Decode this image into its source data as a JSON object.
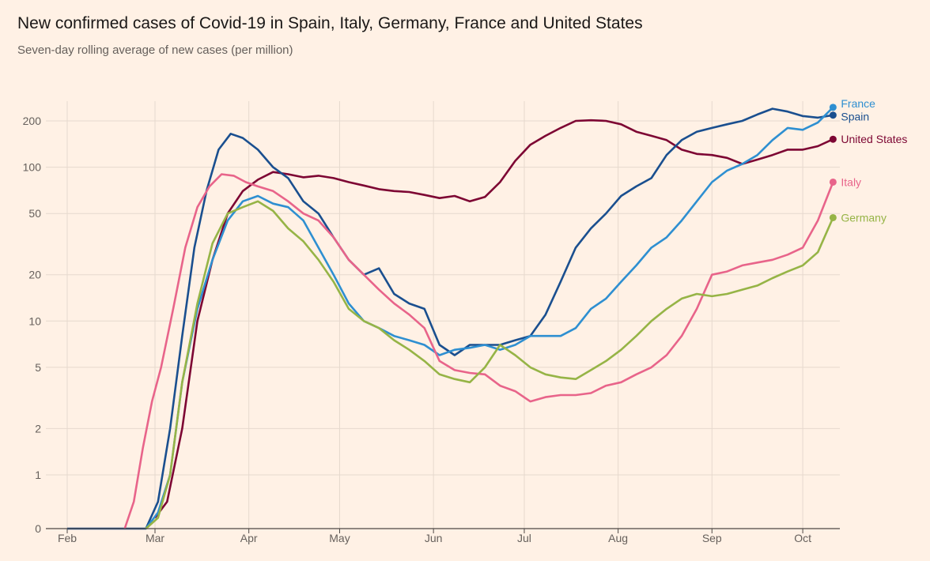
{
  "title": "New confirmed cases of Covid-19 in Spain, Italy, Germany, France and United States",
  "subtitle": "Seven-day rolling average of new cases (per million)",
  "chart_data": {
    "type": "line",
    "title": "New confirmed cases of Covid-19 in Spain, Italy, Germany, France and United States",
    "subtitle": "Seven-day rolling average of new cases (per million)",
    "xlabel": "",
    "ylabel": "",
    "y_scale": "log (with 0 baseline)",
    "y_ticks": [
      "0",
      "1",
      "2",
      "5",
      "10",
      "20",
      "50",
      "100",
      "200"
    ],
    "x_ticks": [
      "Feb",
      "Mar",
      "Apr",
      "May",
      "Jun",
      "Jul",
      "Aug",
      "Sep",
      "Oct"
    ],
    "grid": true,
    "legend": "labels at line ends (right)",
    "series": [
      {
        "name": "United States",
        "color": "#7d0633",
        "points": [
          [
            "2020-03-01",
            0.2
          ],
          [
            "2020-03-05",
            0.5
          ],
          [
            "2020-03-10",
            2
          ],
          [
            "2020-03-15",
            10
          ],
          [
            "2020-03-20",
            25
          ],
          [
            "2020-03-25",
            50
          ],
          [
            "2020-03-30",
            70
          ],
          [
            "2020-04-04",
            83
          ],
          [
            "2020-04-09",
            93
          ],
          [
            "2020-04-14",
            90
          ],
          [
            "2020-04-19",
            86
          ],
          [
            "2020-04-24",
            88
          ],
          [
            "2020-04-29",
            85
          ],
          [
            "2020-05-04",
            80
          ],
          [
            "2020-05-09",
            76
          ],
          [
            "2020-05-14",
            72
          ],
          [
            "2020-05-19",
            70
          ],
          [
            "2020-05-24",
            69
          ],
          [
            "2020-05-29",
            66
          ],
          [
            "2020-06-03",
            63
          ],
          [
            "2020-06-08",
            65
          ],
          [
            "2020-06-13",
            60
          ],
          [
            "2020-06-18",
            64
          ],
          [
            "2020-06-23",
            80
          ],
          [
            "2020-06-28",
            110
          ],
          [
            "2020-07-03",
            140
          ],
          [
            "2020-07-08",
            160
          ],
          [
            "2020-07-13",
            180
          ],
          [
            "2020-07-18",
            200
          ],
          [
            "2020-07-23",
            202
          ],
          [
            "2020-07-28",
            200
          ],
          [
            "2020-08-02",
            190
          ],
          [
            "2020-08-07",
            170
          ],
          [
            "2020-08-12",
            160
          ],
          [
            "2020-08-17",
            150
          ],
          [
            "2020-08-22",
            130
          ],
          [
            "2020-08-27",
            122
          ],
          [
            "2020-09-01",
            120
          ],
          [
            "2020-09-06",
            115
          ],
          [
            "2020-09-11",
            105
          ],
          [
            "2020-09-16",
            112
          ],
          [
            "2020-09-21",
            120
          ],
          [
            "2020-09-26",
            130
          ],
          [
            "2020-10-01",
            130
          ],
          [
            "2020-10-06",
            137
          ],
          [
            "2020-10-11",
            152
          ]
        ]
      },
      {
        "name": "Spain",
        "color": "#1a4f8f",
        "points": [
          [
            "2020-02-01",
            0
          ],
          [
            "2020-02-20",
            0
          ],
          [
            "2020-02-27",
            0
          ],
          [
            "2020-03-02",
            0.5
          ],
          [
            "2020-03-06",
            2
          ],
          [
            "2020-03-10",
            8
          ],
          [
            "2020-03-14",
            30
          ],
          [
            "2020-03-18",
            70
          ],
          [
            "2020-03-22",
            130
          ],
          [
            "2020-03-26",
            165
          ],
          [
            "2020-03-30",
            155
          ],
          [
            "2020-04-04",
            130
          ],
          [
            "2020-04-09",
            100
          ],
          [
            "2020-04-14",
            85
          ],
          [
            "2020-04-19",
            60
          ],
          [
            "2020-04-24",
            50
          ],
          [
            "2020-04-29",
            35
          ],
          [
            "2020-05-04",
            25
          ],
          [
            "2020-05-09",
            20
          ],
          [
            "2020-05-14",
            22
          ],
          [
            "2020-05-19",
            15
          ],
          [
            "2020-05-24",
            13
          ],
          [
            "2020-05-29",
            12
          ],
          [
            "2020-06-03",
            7
          ],
          [
            "2020-06-08",
            6
          ],
          [
            "2020-06-13",
            7
          ],
          [
            "2020-06-18",
            7
          ],
          [
            "2020-06-23",
            7
          ],
          [
            "2020-06-28",
            7.5
          ],
          [
            "2020-07-03",
            8
          ],
          [
            "2020-07-08",
            11
          ],
          [
            "2020-07-13",
            18
          ],
          [
            "2020-07-18",
            30
          ],
          [
            "2020-07-23",
            40
          ],
          [
            "2020-07-28",
            50
          ],
          [
            "2020-08-02",
            65
          ],
          [
            "2020-08-07",
            75
          ],
          [
            "2020-08-12",
            85
          ],
          [
            "2020-08-17",
            120
          ],
          [
            "2020-08-22",
            150
          ],
          [
            "2020-08-27",
            170
          ],
          [
            "2020-09-01",
            180
          ],
          [
            "2020-09-06",
            190
          ],
          [
            "2020-09-11",
            200
          ],
          [
            "2020-09-16",
            220
          ],
          [
            "2020-09-21",
            240
          ],
          [
            "2020-09-26",
            230
          ],
          [
            "2020-10-01",
            215
          ],
          [
            "2020-10-06",
            210
          ],
          [
            "2020-10-11",
            218
          ]
        ]
      },
      {
        "name": "France",
        "color": "#2e8fd1",
        "points": [
          [
            "2020-02-27",
            0
          ],
          [
            "2020-03-02",
            0.3
          ],
          [
            "2020-03-06",
            1
          ],
          [
            "2020-03-10",
            4
          ],
          [
            "2020-03-15",
            12
          ],
          [
            "2020-03-20",
            25
          ],
          [
            "2020-03-25",
            45
          ],
          [
            "2020-03-30",
            60
          ],
          [
            "2020-04-04",
            65
          ],
          [
            "2020-04-09",
            58
          ],
          [
            "2020-04-14",
            55
          ],
          [
            "2020-04-19",
            45
          ],
          [
            "2020-04-24",
            30
          ],
          [
            "2020-04-29",
            20
          ],
          [
            "2020-05-04",
            13
          ],
          [
            "2020-05-09",
            10
          ],
          [
            "2020-05-14",
            9
          ],
          [
            "2020-05-19",
            8
          ],
          [
            "2020-05-24",
            7.5
          ],
          [
            "2020-05-29",
            7
          ],
          [
            "2020-06-03",
            6
          ],
          [
            "2020-06-08",
            6.5
          ],
          [
            "2020-06-13",
            6.7
          ],
          [
            "2020-06-18",
            7
          ],
          [
            "2020-06-23",
            6.5
          ],
          [
            "2020-06-28",
            7
          ],
          [
            "2020-07-03",
            8
          ],
          [
            "2020-07-08",
            8
          ],
          [
            "2020-07-13",
            8
          ],
          [
            "2020-07-18",
            9
          ],
          [
            "2020-07-23",
            12
          ],
          [
            "2020-07-28",
            14
          ],
          [
            "2020-08-02",
            18
          ],
          [
            "2020-08-07",
            23
          ],
          [
            "2020-08-12",
            30
          ],
          [
            "2020-08-17",
            35
          ],
          [
            "2020-08-22",
            45
          ],
          [
            "2020-08-27",
            60
          ],
          [
            "2020-09-01",
            80
          ],
          [
            "2020-09-06",
            95
          ],
          [
            "2020-09-11",
            105
          ],
          [
            "2020-09-16",
            120
          ],
          [
            "2020-09-21",
            150
          ],
          [
            "2020-09-26",
            180
          ],
          [
            "2020-10-01",
            175
          ],
          [
            "2020-10-06",
            195
          ],
          [
            "2020-10-11",
            245
          ]
        ]
      },
      {
        "name": "Italy",
        "color": "#e8648a",
        "points": [
          [
            "2020-02-20",
            0
          ],
          [
            "2020-02-23",
            0.5
          ],
          [
            "2020-02-26",
            1.5
          ],
          [
            "2020-02-29",
            3
          ],
          [
            "2020-03-03",
            5
          ],
          [
            "2020-03-07",
            12
          ],
          [
            "2020-03-11",
            30
          ],
          [
            "2020-03-15",
            55
          ],
          [
            "2020-03-19",
            75
          ],
          [
            "2020-03-23",
            90
          ],
          [
            "2020-03-27",
            88
          ],
          [
            "2020-03-31",
            80
          ],
          [
            "2020-04-04",
            75
          ],
          [
            "2020-04-09",
            70
          ],
          [
            "2020-04-14",
            60
          ],
          [
            "2020-04-19",
            50
          ],
          [
            "2020-04-24",
            45
          ],
          [
            "2020-04-29",
            35
          ],
          [
            "2020-05-04",
            25
          ],
          [
            "2020-05-09",
            20
          ],
          [
            "2020-05-14",
            16
          ],
          [
            "2020-05-19",
            13
          ],
          [
            "2020-05-24",
            11
          ],
          [
            "2020-05-29",
            9
          ],
          [
            "2020-06-03",
            5.5
          ],
          [
            "2020-06-08",
            4.8
          ],
          [
            "2020-06-13",
            4.6
          ],
          [
            "2020-06-18",
            4.5
          ],
          [
            "2020-06-23",
            3.8
          ],
          [
            "2020-06-28",
            3.5
          ],
          [
            "2020-07-03",
            3
          ],
          [
            "2020-07-08",
            3.2
          ],
          [
            "2020-07-13",
            3.3
          ],
          [
            "2020-07-18",
            3.3
          ],
          [
            "2020-07-23",
            3.4
          ],
          [
            "2020-07-28",
            3.8
          ],
          [
            "2020-08-02",
            4
          ],
          [
            "2020-08-07",
            4.5
          ],
          [
            "2020-08-12",
            5
          ],
          [
            "2020-08-17",
            6
          ],
          [
            "2020-08-22",
            8
          ],
          [
            "2020-08-27",
            12
          ],
          [
            "2020-09-01",
            20
          ],
          [
            "2020-09-06",
            21
          ],
          [
            "2020-09-11",
            23
          ],
          [
            "2020-09-16",
            24
          ],
          [
            "2020-09-21",
            25
          ],
          [
            "2020-09-26",
            27
          ],
          [
            "2020-10-01",
            30
          ],
          [
            "2020-10-06",
            45
          ],
          [
            "2020-10-11",
            80
          ]
        ]
      },
      {
        "name": "Germany",
        "color": "#96b446",
        "points": [
          [
            "2020-02-27",
            0
          ],
          [
            "2020-03-02",
            0.2
          ],
          [
            "2020-03-06",
            1
          ],
          [
            "2020-03-10",
            4
          ],
          [
            "2020-03-15",
            13
          ],
          [
            "2020-03-20",
            32
          ],
          [
            "2020-03-25",
            50
          ],
          [
            "2020-03-30",
            55
          ],
          [
            "2020-04-04",
            60
          ],
          [
            "2020-04-09",
            52
          ],
          [
            "2020-04-14",
            40
          ],
          [
            "2020-04-19",
            33
          ],
          [
            "2020-04-24",
            25
          ],
          [
            "2020-04-29",
            18
          ],
          [
            "2020-05-04",
            12
          ],
          [
            "2020-05-09",
            10
          ],
          [
            "2020-05-14",
            9
          ],
          [
            "2020-05-19",
            7.5
          ],
          [
            "2020-05-24",
            6.5
          ],
          [
            "2020-05-29",
            5.5
          ],
          [
            "2020-06-03",
            4.5
          ],
          [
            "2020-06-08",
            4.2
          ],
          [
            "2020-06-13",
            4
          ],
          [
            "2020-06-18",
            5
          ],
          [
            "2020-06-23",
            7
          ],
          [
            "2020-06-28",
            6
          ],
          [
            "2020-07-03",
            5
          ],
          [
            "2020-07-08",
            4.5
          ],
          [
            "2020-07-13",
            4.3
          ],
          [
            "2020-07-18",
            4.2
          ],
          [
            "2020-07-23",
            4.8
          ],
          [
            "2020-07-28",
            5.5
          ],
          [
            "2020-08-02",
            6.5
          ],
          [
            "2020-08-07",
            8
          ],
          [
            "2020-08-12",
            10
          ],
          [
            "2020-08-17",
            12
          ],
          [
            "2020-08-22",
            14
          ],
          [
            "2020-08-27",
            15
          ],
          [
            "2020-09-01",
            14.5
          ],
          [
            "2020-09-06",
            15
          ],
          [
            "2020-09-11",
            16
          ],
          [
            "2020-09-16",
            17
          ],
          [
            "2020-09-21",
            19
          ],
          [
            "2020-09-26",
            21
          ],
          [
            "2020-10-01",
            23
          ],
          [
            "2020-10-06",
            28
          ],
          [
            "2020-10-11",
            47
          ]
        ]
      }
    ]
  }
}
